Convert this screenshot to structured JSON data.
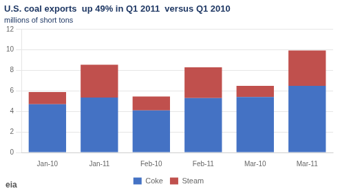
{
  "chart_data": {
    "type": "bar",
    "stacked": true,
    "title": "U.S. coal exports  up 49% in Q1 2011  versus Q1 2010",
    "subtitle": "millions of short tons",
    "annotation": "eia",
    "categories": [
      "Jan-10",
      "Jan-11",
      "Feb-10",
      "Feb-11",
      "Mar-10",
      "Mar-11"
    ],
    "series": [
      {
        "name": "Coke",
        "color": "#4472c4",
        "values": [
          4.7,
          5.35,
          4.1,
          5.3,
          5.4,
          6.5
        ]
      },
      {
        "name": "Steam",
        "color": "#c0504d",
        "values": [
          1.2,
          3.2,
          1.35,
          3.0,
          1.1,
          3.45
        ]
      }
    ],
    "ylim": [
      0,
      12
    ],
    "yticks": [
      0,
      2,
      4,
      6,
      8,
      10,
      12
    ],
    "grid": true,
    "legend": "bottom"
  }
}
